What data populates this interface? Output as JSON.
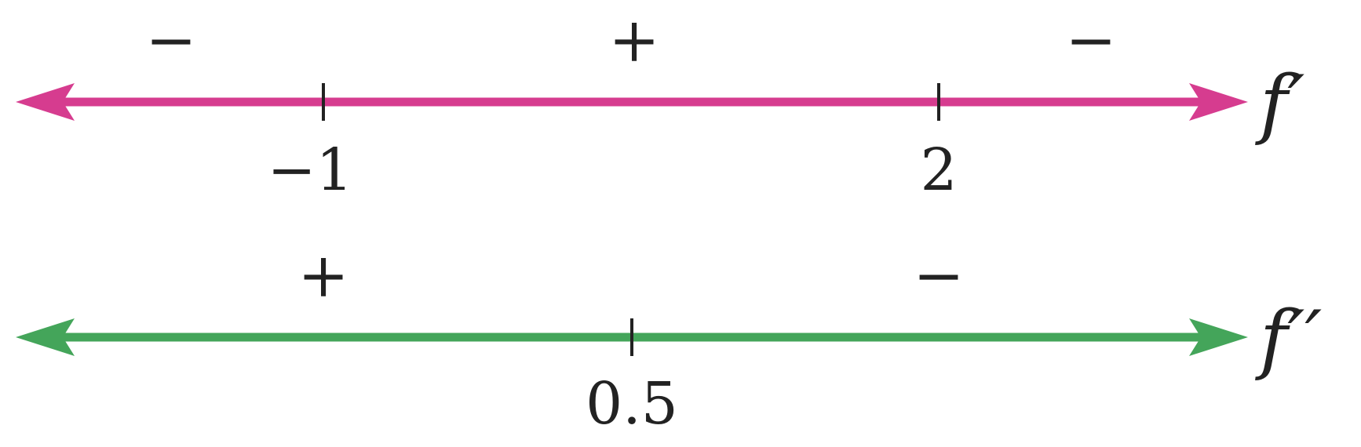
{
  "lines": [
    {
      "id": "f-prime",
      "label": "f′",
      "color": "#D63C8F",
      "ticks": [
        {
          "value": "−1"
        },
        {
          "value": "2"
        }
      ],
      "signs": [
        "−",
        "+",
        "−"
      ]
    },
    {
      "id": "f-double-prime",
      "label": "f′′",
      "color": "#44A55A",
      "ticks": [
        {
          "value": "0.5"
        }
      ],
      "signs": [
        "+",
        "−"
      ]
    }
  ],
  "colors": {
    "text": "#222222",
    "ticks": "#222222"
  }
}
